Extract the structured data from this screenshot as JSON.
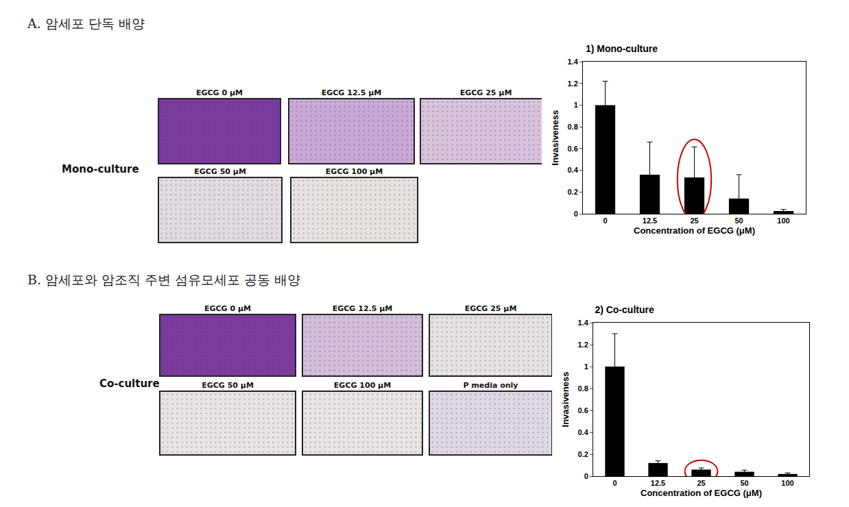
{
  "sections": [
    {
      "heading": "A. 암세포 단독 배양",
      "row_label": "Mono-culture",
      "images": [
        {
          "label": "EGCG 0 μM",
          "color": "#7a3c9e"
        },
        {
          "label": "EGCG 12.5 μM",
          "color": "#c8aad4"
        },
        {
          "label": "EGCG 25 μM",
          "color": "#d7c4dc"
        },
        {
          "label": "EGCG 50 μM",
          "color": "#e2dbdf"
        },
        {
          "label": "EGCG 100 μM",
          "color": "#e6e3df"
        }
      ]
    },
    {
      "heading": "B. 암세포와 암조직 주변 섬유모세포 공동 배양",
      "row_label": "Co-culture",
      "images": [
        {
          "label": "EGCG 0 μM",
          "color": "#7a3c9e"
        },
        {
          "label": "EGCG 12.5 μM",
          "color": "#d3bfd9"
        },
        {
          "label": "EGCG 25 μM",
          "color": "#e6e2e2"
        },
        {
          "label": "EGCG 50 μM",
          "color": "#e8e5e2"
        },
        {
          "label": "EGCG 100 μM",
          "color": "#e8e5e2"
        },
        {
          "label": "P media only",
          "color": "#e0d9e3"
        }
      ]
    }
  ],
  "chart_data": [
    {
      "type": "bar",
      "title": "1) Mono-culture",
      "x_label": "Concentration of EGCG (μM)",
      "y_label": "Invasiveness",
      "categories": [
        "0",
        "12.5",
        "25",
        "50",
        "100"
      ],
      "values": [
        1.0,
        0.36,
        0.335,
        0.14,
        0.025
      ],
      "errors": [
        0.22,
        0.3,
        0.28,
        0.22,
        0.015
      ],
      "color": "#000000",
      "ylim": [
        0,
        1.4
      ],
      "yticks": [
        0,
        0.2,
        0.4,
        0.6,
        0.8,
        1,
        1.2,
        1.4
      ],
      "grid": false,
      "annotations": [
        {
          "shape": "circle",
          "category": "25",
          "color": "#cc0000"
        }
      ]
    },
    {
      "type": "bar",
      "title": "2) Co-culture",
      "x_label": "Concentration of EGCG (μM)",
      "y_label": "Invasiveness",
      "categories": [
        "0",
        "12.5",
        "25",
        "50",
        "100"
      ],
      "values": [
        1.0,
        0.12,
        0.06,
        0.04,
        0.02
      ],
      "errors": [
        0.3,
        0.02,
        0.015,
        0.015,
        0.01
      ],
      "color": "#000000",
      "ylim": [
        0,
        1.4
      ],
      "yticks": [
        0,
        0.2,
        0.4,
        0.6,
        0.8,
        1,
        1.2,
        1.4
      ],
      "grid": false,
      "annotations": [
        {
          "shape": "circle",
          "category": "25",
          "color": "#cc0000"
        }
      ]
    }
  ]
}
